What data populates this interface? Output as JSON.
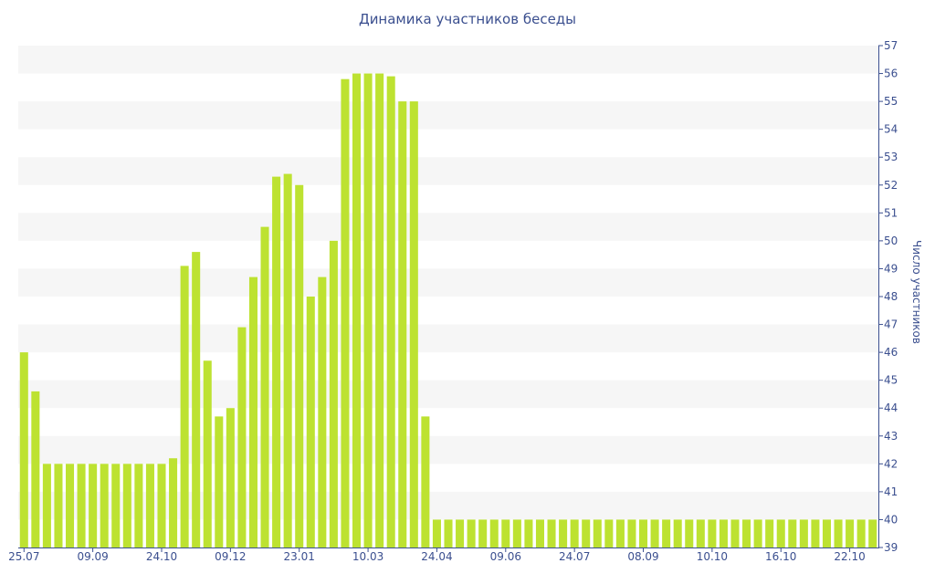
{
  "chart_data": {
    "type": "bar",
    "title": "Динамика участников беседы",
    "ylabel": "Число участников",
    "xlabel": "",
    "ylim": [
      39,
      57
    ],
    "y_ticks": [
      39,
      40,
      41,
      42,
      43,
      44,
      45,
      46,
      47,
      48,
      49,
      50,
      51,
      52,
      53,
      54,
      55,
      56,
      57
    ],
    "x_tick_labels": [
      "25.07",
      "09.09",
      "24.10",
      "09.12",
      "23.01",
      "10.03",
      "24.04",
      "09.06",
      "24.07",
      "08.09",
      "10.10",
      "16.10",
      "22.10"
    ],
    "x_tick_indices": [
      0,
      6,
      12,
      18,
      24,
      30,
      36,
      42,
      48,
      54,
      60,
      66,
      72
    ],
    "values": [
      46,
      44.6,
      42,
      42,
      42,
      42,
      42,
      42,
      42,
      42,
      42,
      42,
      42,
      42.2,
      49.1,
      49.6,
      45.7,
      43.7,
      44,
      46.9,
      48.7,
      50.5,
      52.3,
      52.4,
      52,
      48,
      48.7,
      50,
      55.8,
      56,
      56,
      56,
      55.9,
      55,
      55,
      43.7,
      40,
      40,
      40,
      40,
      40,
      40,
      40,
      40,
      40,
      40,
      40,
      40,
      40,
      40,
      40,
      40,
      40,
      40,
      40,
      40,
      40,
      40,
      40,
      40,
      40,
      40,
      40,
      40,
      40,
      40,
      40,
      40,
      40,
      40,
      40,
      40,
      40,
      40,
      40
    ],
    "bar_color": "#bde231",
    "band_color": "#f6f6f6",
    "grid": true,
    "legend": "none"
  }
}
